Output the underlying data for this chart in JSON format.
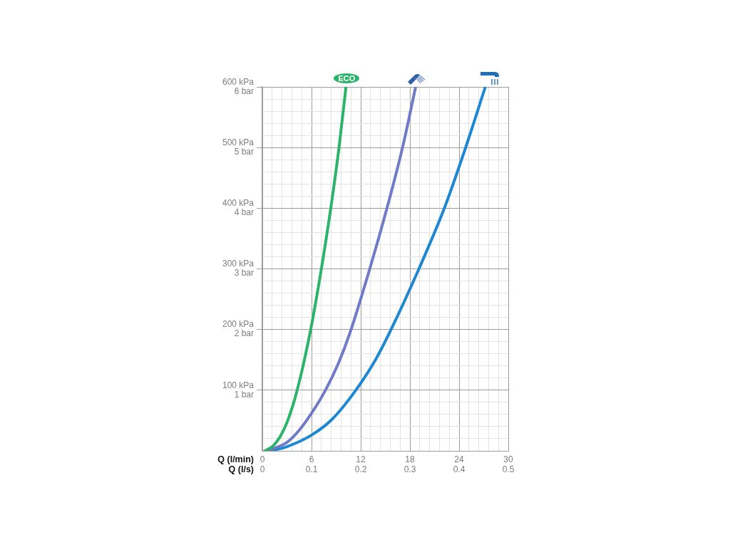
{
  "chart_data": {
    "type": "line",
    "xlabel": "Q (l/min)",
    "x2label": "Q (l/s)",
    "xlim": [
      0,
      30
    ],
    "xticks": [
      0,
      {
        "value": 1.2,
        "label": null
      },
      {
        "value": 2.4,
        "label": null
      },
      {
        "value": 3.6,
        "label": null
      },
      {
        "value": 4.8,
        "label": null
      },
      6,
      {
        "value": 7.2,
        "label": null
      },
      {
        "value": 8.4,
        "label": null
      },
      {
        "value": 9.6,
        "label": null
      },
      {
        "value": 10.8,
        "label": null
      },
      12,
      {
        "value": 13.2,
        "label": null
      },
      {
        "value": 14.4,
        "label": null
      },
      {
        "value": 15.6,
        "label": null
      },
      {
        "value": 16.8,
        "label": null
      },
      18,
      {
        "value": 19.2,
        "label": null
      },
      {
        "value": 20.4,
        "label": null
      },
      {
        "value": 21.6,
        "label": null
      },
      {
        "value": 22.8,
        "label": null
      },
      24,
      {
        "value": 25.2,
        "label": null
      },
      {
        "value": 26.4,
        "label": null
      },
      {
        "value": 27.6,
        "label": null
      },
      {
        "value": 28.8,
        "label": null
      },
      30
    ],
    "x2lim": [
      0,
      0.5
    ],
    "x2ticks": [
      0,
      0.1,
      0.2,
      0.3,
      0.4,
      0.5
    ],
    "ylim": [
      0,
      600
    ],
    "yticks": [
      {
        "value": 0,
        "label": null
      },
      {
        "value": 20,
        "label": null
      },
      {
        "value": 40,
        "label": null
      },
      {
        "value": 60,
        "label": null
      },
      {
        "value": 80,
        "label": null
      },
      {
        "value": 100,
        "label": "100 kPa"
      },
      {
        "value": 120,
        "label": null
      },
      {
        "value": 140,
        "label": null
      },
      {
        "value": 160,
        "label": null
      },
      {
        "value": 180,
        "label": null
      },
      {
        "value": 200,
        "label": "200 kPa"
      },
      {
        "value": 220,
        "label": null
      },
      {
        "value": 240,
        "label": null
      },
      {
        "value": 260,
        "label": null
      },
      {
        "value": 280,
        "label": null
      },
      {
        "value": 300,
        "label": "300 kPa"
      },
      {
        "value": 320,
        "label": null
      },
      {
        "value": 340,
        "label": null
      },
      {
        "value": 360,
        "label": null
      },
      {
        "value": 380,
        "label": null
      },
      {
        "value": 400,
        "label": "400 kPa"
      },
      {
        "value": 420,
        "label": null
      },
      {
        "value": 440,
        "label": null
      },
      {
        "value": 460,
        "label": null
      },
      {
        "value": 480,
        "label": null
      },
      {
        "value": 500,
        "label": "500 kPa"
      },
      {
        "value": 520,
        "label": null
      },
      {
        "value": 540,
        "label": null
      },
      {
        "value": 560,
        "label": null
      },
      {
        "value": 580,
        "label": null
      },
      {
        "value": 600,
        "label": "600 kPa"
      }
    ],
    "y2lim": [
      0,
      6
    ],
    "y2ticks": [
      {
        "value": 1,
        "label": "1 bar"
      },
      {
        "value": 2,
        "label": "2 bar"
      },
      {
        "value": 3,
        "label": "3 bar"
      },
      {
        "value": 4,
        "label": "4 bar"
      },
      {
        "value": 5,
        "label": "5 bar"
      },
      {
        "value": 6,
        "label": "6 bar"
      }
    ],
    "grid": true,
    "legend": false,
    "marker": "none",
    "line_style": "solid",
    "series": [
      {
        "name": "ECO",
        "color": "#2bb36a",
        "x": [
          0.3,
          1.3,
          2.2,
          3.1,
          4.25,
          5.9,
          7.2,
          8.35,
          9.35,
          10.2
        ],
        "values": [
          0,
          8,
          24,
          50,
          100,
          200,
          300,
          400,
          500,
          600
        ]
      },
      {
        "color": "#6f7bc9",
        "x": [
          0.5,
          3,
          4.5,
          6,
          7.7,
          9.3,
          10.7,
          13.1,
          15.2,
          17.1,
          18.7
        ],
        "values": [
          0,
          14,
          34,
          62,
          100,
          145,
          195,
          300,
          400,
          500,
          600
        ]
      },
      {
        "color": "#1e87d2",
        "x": [
          1,
          3,
          6,
          8.5,
          11.4,
          13.8,
          15.7,
          19.1,
          22.2,
          24.8,
          27.2
        ],
        "values": [
          0,
          7,
          26,
          52,
          100,
          150,
          200,
          300,
          400,
          500,
          600
        ]
      }
    ]
  }
}
